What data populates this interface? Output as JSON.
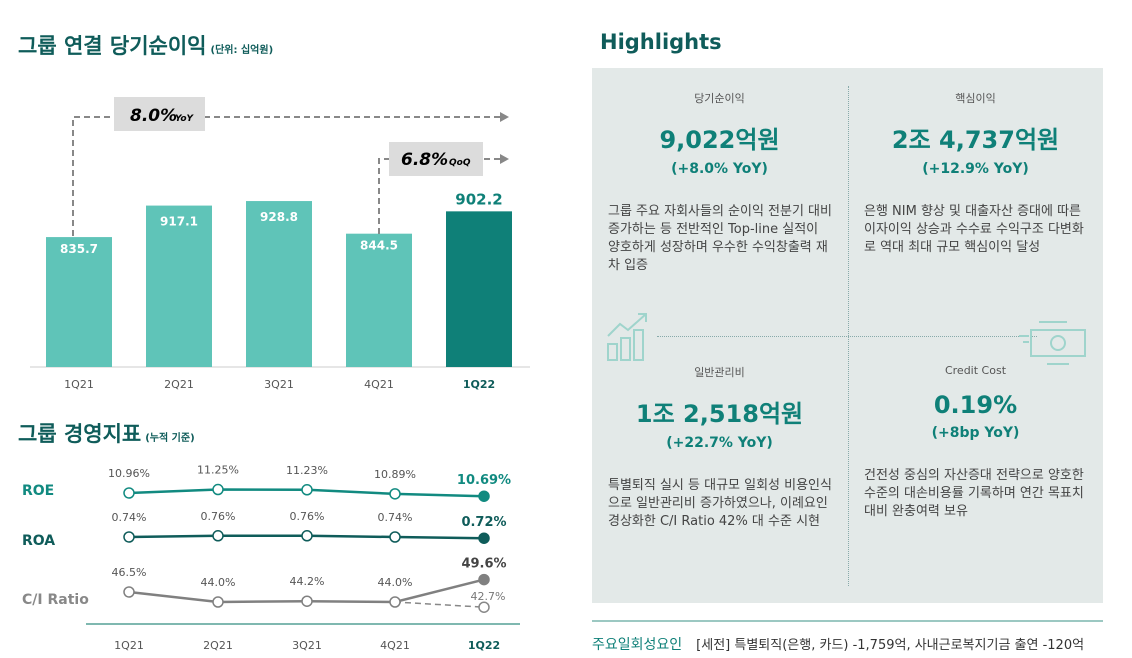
{
  "left": {
    "title": "그룹 연결 당기순이익",
    "unit": "(단위: 십억원)",
    "title2": "그룹 경영지표",
    "unit2": "(누적 기준)"
  },
  "chart_data": [
    {
      "type": "bar",
      "title": "그룹 연결 당기순이익",
      "unit": "십억원",
      "categories": [
        "1Q21",
        "2Q21",
        "3Q21",
        "4Q21",
        "1Q22"
      ],
      "values": [
        835.7,
        917.1,
        928.8,
        844.5,
        902.2
      ],
      "labels": [
        "835.7",
        "917.1",
        "928.8",
        "844.5",
        "902.2"
      ],
      "annotations": [
        {
          "value": "8.0%",
          "suffix": "YoY"
        },
        {
          "value": "6.8%",
          "suffix": "QoQ"
        }
      ],
      "colors": [
        "#5fc4b8",
        "#0f8078"
      ]
    },
    {
      "type": "line",
      "title": "그룹 경영지표",
      "categories": [
        "1Q21",
        "2Q21",
        "3Q21",
        "4Q21",
        "1Q22"
      ],
      "series": [
        {
          "name": "ROE",
          "values": [
            10.96,
            11.25,
            11.23,
            10.89,
            10.69
          ],
          "labels": [
            "10.96%",
            "11.25%",
            "11.23%",
            "10.89%",
            "10.69%"
          ],
          "color": "#118a80"
        },
        {
          "name": "ROA",
          "values": [
            0.74,
            0.76,
            0.76,
            0.74,
            0.72
          ],
          "labels": [
            "0.74%",
            "0.76%",
            "0.76%",
            "0.74%",
            "0.72%"
          ],
          "color": "#0f5c5a"
        },
        {
          "name": "C/I Ratio",
          "values": [
            46.5,
            44.0,
            44.2,
            44.0,
            49.6
          ],
          "labels": [
            "46.5%",
            "44.0%",
            "44.2%",
            "44.0%",
            "49.6%"
          ],
          "adjusted": {
            "value": 42.7,
            "label": "42.7%"
          },
          "color": "#808080"
        }
      ]
    }
  ],
  "highlights": {
    "title": "Highlights",
    "cells": [
      {
        "label": "당기순이익",
        "value": "9,022억원",
        "change": "(+8.0% YoY)",
        "desc": "그룹 주요 자회사들의 순이익 전분기 대비 증가하는 등 전반적인 Top-line 실적이 양호하게 성장하며 우수한 수익창출력 재차 입증"
      },
      {
        "label": "핵심이익",
        "value": "2조 4,737억원",
        "change": "(+12.9% YoY)",
        "desc": "은행 NIM 향상 및 대출자산 증대에 따른 이자이익 상승과 수수료 수익구조 다변화로 역대 최대 규모 핵심이익 달성"
      },
      {
        "label": "일반관리비",
        "value": "1조 2,518억원",
        "change": "(+22.7% YoY)",
        "desc": "특별퇴직 실시 등 대규모 일회성 비용인식으로 일반관리비 증가하였으나, 이례요인 경상화한 C/I Ratio 42% 대 수준 시현"
      },
      {
        "label": "Credit Cost",
        "value": "0.19%",
        "change": "(+8bp YoY)",
        "desc": "건전성 중심의 자산증대 전략으로 양호한 수준의 대손비용률 기록하며 연간 목표치 대비 완충여력 보유"
      }
    ]
  },
  "footer": {
    "label": "주요일회성요인",
    "text": "[세전] 특별퇴직(은행, 카드) -1,759억, 사내근로복지기금 출연 -120억"
  }
}
